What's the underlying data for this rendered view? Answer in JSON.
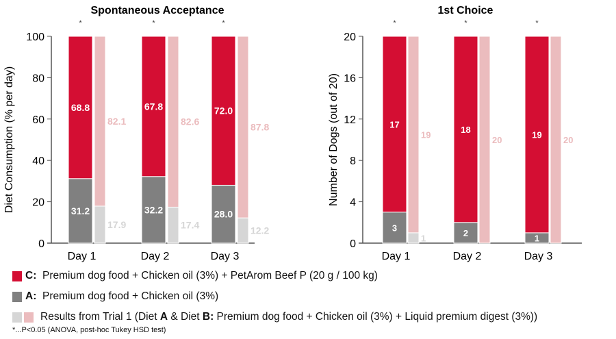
{
  "colors": {
    "C": "#d40e33",
    "A": "#808080",
    "trial1_A": "#d6d6d6",
    "trial1_B": "#ebbcbe"
  },
  "chart_data": [
    {
      "type": "bar",
      "stacked": true,
      "title": "Spontaneous Acceptance",
      "ylabel": "Diet Consumption (% per day)",
      "xlabel": "",
      "ylim": [
        0,
        100
      ],
      "yticks": [
        "0",
        "20",
        "40",
        "60",
        "80",
        "100"
      ],
      "categories": [
        "Day 1",
        "Day 2",
        "Day 3"
      ],
      "significance": [
        "*",
        "*",
        "*"
      ],
      "series": [
        {
          "name": "A",
          "stack": "current",
          "values": [
            31.2,
            32.2,
            28.0
          ],
          "labels": [
            "31.2",
            "32.2",
            "28.0"
          ]
        },
        {
          "name": "C",
          "stack": "current",
          "values": [
            68.8,
            67.8,
            72.0
          ],
          "labels": [
            "68.8",
            "67.8",
            "72.0"
          ]
        },
        {
          "name": "Trial 1 Diet A",
          "stack": "trial1",
          "values": [
            17.9,
            17.4,
            12.2
          ],
          "labels": [
            "17.9",
            "17.4",
            "12.2"
          ]
        },
        {
          "name": "Trial 1 Diet B",
          "stack": "trial1",
          "values": [
            82.1,
            82.6,
            87.8
          ],
          "labels": [
            "82.1",
            "82.6",
            "87.8"
          ]
        }
      ]
    },
    {
      "type": "bar",
      "stacked": true,
      "title": "1st Choice",
      "ylabel": "Number of Dogs (out of 20)",
      "xlabel": "",
      "ylim": [
        0,
        20
      ],
      "yticks": [
        "0",
        "4",
        "8",
        "12",
        "16",
        "20"
      ],
      "categories": [
        "Day 1",
        "Day 2",
        "Day 3"
      ],
      "significance": [
        "*",
        "*",
        "*"
      ],
      "series": [
        {
          "name": "A",
          "stack": "current",
          "values": [
            3,
            2,
            1
          ],
          "labels": [
            "3",
            "2",
            "1"
          ]
        },
        {
          "name": "C",
          "stack": "current",
          "values": [
            17,
            18,
            19
          ],
          "labels": [
            "17",
            "18",
            "19"
          ]
        },
        {
          "name": "Trial 1 Diet A",
          "stack": "trial1",
          "values": [
            1,
            0,
            0
          ],
          "labels": [
            "1",
            "",
            ""
          ]
        },
        {
          "name": "Trial 1 Diet B",
          "stack": "trial1",
          "values": [
            19,
            20,
            20
          ],
          "labels": [
            "19",
            "20",
            "20"
          ]
        }
      ]
    }
  ],
  "legend": {
    "c_key": "C:",
    "c_text": "Premium dog food + Chicken oil (3%) + PetArom Beef P (20 g / 100 kg)",
    "a_key": "A:",
    "a_text": "Premium dog food + Chicken oil (3%)",
    "t1_pre": "Results from Trial 1 (Diet ",
    "t1_a": "A",
    "t1_mid": " & Diet ",
    "t1_b": "B:",
    "t1_post": " Premium dog food + Chicken oil (3%) + Liquid premium digest (3%))"
  },
  "footnote": "*...P<0.05 (ANOVA, post-hoc Tukey HSD test)"
}
